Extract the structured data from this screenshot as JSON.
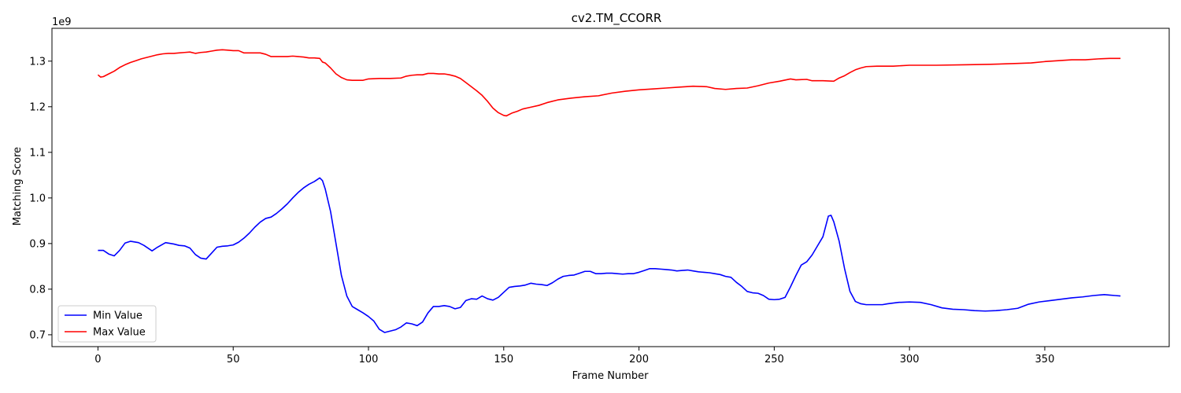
{
  "chart_data": {
    "type": "line",
    "title": "cv2.TM_CCORR",
    "xlabel": "Frame Number",
    "ylabel": "Matching Score",
    "y_offset_text": "1e9",
    "xlim": [
      -17,
      396
    ],
    "ylim": [
      0.674,
      1.372
    ],
    "x_ticks": [
      0,
      50,
      100,
      150,
      200,
      250,
      300,
      350
    ],
    "x_tick_labels": [
      "0",
      "50",
      "100",
      "150",
      "200",
      "250",
      "300",
      "350"
    ],
    "y_ticks": [
      0.7,
      0.8,
      0.9,
      1.0,
      1.1,
      1.2,
      1.3
    ],
    "y_tick_labels": [
      "0.7",
      "0.8",
      "0.9",
      "1.0",
      "1.1",
      "1.2",
      "1.3"
    ],
    "grid": false,
    "legend_position": "lower-left",
    "series": [
      {
        "name": "Min Value",
        "color": "#0000ff",
        "points": [
          [
            0,
            0.885
          ],
          [
            2,
            0.885
          ],
          [
            4,
            0.877
          ],
          [
            6,
            0.873
          ],
          [
            8,
            0.885
          ],
          [
            10,
            0.901
          ],
          [
            12,
            0.905
          ],
          [
            15,
            0.902
          ],
          [
            17,
            0.896
          ],
          [
            20,
            0.884
          ],
          [
            22,
            0.892
          ],
          [
            25,
            0.902
          ],
          [
            28,
            0.899
          ],
          [
            30,
            0.896
          ],
          [
            32,
            0.895
          ],
          [
            34,
            0.89
          ],
          [
            36,
            0.876
          ],
          [
            38,
            0.868
          ],
          [
            40,
            0.866
          ],
          [
            42,
            0.879
          ],
          [
            44,
            0.892
          ],
          [
            46,
            0.894
          ],
          [
            48,
            0.895
          ],
          [
            50,
            0.897
          ],
          [
            52,
            0.903
          ],
          [
            54,
            0.912
          ],
          [
            56,
            0.923
          ],
          [
            58,
            0.936
          ],
          [
            60,
            0.947
          ],
          [
            62,
            0.955
          ],
          [
            64,
            0.958
          ],
          [
            66,
            0.966
          ],
          [
            68,
            0.976
          ],
          [
            70,
            0.987
          ],
          [
            72,
            1.0
          ],
          [
            74,
            1.012
          ],
          [
            76,
            1.022
          ],
          [
            78,
            1.03
          ],
          [
            80,
            1.036
          ],
          [
            82,
            1.044
          ],
          [
            83,
            1.038
          ],
          [
            84,
            1.02
          ],
          [
            86,
            0.97
          ],
          [
            88,
            0.9
          ],
          [
            90,
            0.83
          ],
          [
            92,
            0.785
          ],
          [
            94,
            0.762
          ],
          [
            96,
            0.755
          ],
          [
            98,
            0.748
          ],
          [
            100,
            0.74
          ],
          [
            102,
            0.73
          ],
          [
            104,
            0.712
          ],
          [
            106,
            0.705
          ],
          [
            108,
            0.708
          ],
          [
            110,
            0.711
          ],
          [
            112,
            0.717
          ],
          [
            114,
            0.726
          ],
          [
            116,
            0.724
          ],
          [
            118,
            0.72
          ],
          [
            120,
            0.728
          ],
          [
            122,
            0.748
          ],
          [
            124,
            0.762
          ],
          [
            126,
            0.762
          ],
          [
            128,
            0.764
          ],
          [
            130,
            0.762
          ],
          [
            132,
            0.757
          ],
          [
            134,
            0.76
          ],
          [
            136,
            0.775
          ],
          [
            138,
            0.779
          ],
          [
            140,
            0.778
          ],
          [
            142,
            0.785
          ],
          [
            144,
            0.779
          ],
          [
            146,
            0.776
          ],
          [
            148,
            0.782
          ],
          [
            150,
            0.793
          ],
          [
            152,
            0.804
          ],
          [
            154,
            0.806
          ],
          [
            156,
            0.807
          ],
          [
            158,
            0.809
          ],
          [
            160,
            0.813
          ],
          [
            162,
            0.811
          ],
          [
            164,
            0.81
          ],
          [
            166,
            0.808
          ],
          [
            168,
            0.814
          ],
          [
            170,
            0.822
          ],
          [
            172,
            0.828
          ],
          [
            174,
            0.83
          ],
          [
            176,
            0.831
          ],
          [
            178,
            0.835
          ],
          [
            180,
            0.839
          ],
          [
            182,
            0.839
          ],
          [
            184,
            0.834
          ],
          [
            186,
            0.834
          ],
          [
            188,
            0.835
          ],
          [
            190,
            0.835
          ],
          [
            192,
            0.834
          ],
          [
            194,
            0.833
          ],
          [
            196,
            0.834
          ],
          [
            198,
            0.834
          ],
          [
            200,
            0.837
          ],
          [
            202,
            0.841
          ],
          [
            204,
            0.845
          ],
          [
            206,
            0.845
          ],
          [
            208,
            0.844
          ],
          [
            210,
            0.843
          ],
          [
            212,
            0.842
          ],
          [
            214,
            0.84
          ],
          [
            216,
            0.841
          ],
          [
            218,
            0.842
          ],
          [
            220,
            0.84
          ],
          [
            222,
            0.838
          ],
          [
            224,
            0.837
          ],
          [
            226,
            0.836
          ],
          [
            228,
            0.834
          ],
          [
            230,
            0.832
          ],
          [
            232,
            0.828
          ],
          [
            234,
            0.826
          ],
          [
            236,
            0.815
          ],
          [
            238,
            0.806
          ],
          [
            240,
            0.795
          ],
          [
            242,
            0.792
          ],
          [
            244,
            0.791
          ],
          [
            246,
            0.786
          ],
          [
            248,
            0.778
          ],
          [
            250,
            0.777
          ],
          [
            252,
            0.778
          ],
          [
            254,
            0.782
          ],
          [
            256,
            0.805
          ],
          [
            258,
            0.83
          ],
          [
            260,
            0.853
          ],
          [
            262,
            0.86
          ],
          [
            264,
            0.875
          ],
          [
            266,
            0.895
          ],
          [
            268,
            0.915
          ],
          [
            270,
            0.96
          ],
          [
            271,
            0.962
          ],
          [
            272,
            0.948
          ],
          [
            274,
            0.905
          ],
          [
            276,
            0.845
          ],
          [
            278,
            0.795
          ],
          [
            280,
            0.773
          ],
          [
            282,
            0.768
          ],
          [
            284,
            0.766
          ],
          [
            290,
            0.766
          ],
          [
            292,
            0.768
          ],
          [
            296,
            0.771
          ],
          [
            300,
            0.772
          ],
          [
            304,
            0.771
          ],
          [
            308,
            0.766
          ],
          [
            312,
            0.759
          ],
          [
            316,
            0.756
          ],
          [
            320,
            0.755
          ],
          [
            324,
            0.753
          ],
          [
            328,
            0.752
          ],
          [
            332,
            0.753
          ],
          [
            336,
            0.755
          ],
          [
            340,
            0.758
          ],
          [
            344,
            0.767
          ],
          [
            348,
            0.772
          ],
          [
            352,
            0.775
          ],
          [
            356,
            0.778
          ],
          [
            360,
            0.781
          ],
          [
            364,
            0.783
          ],
          [
            368,
            0.786
          ],
          [
            372,
            0.788
          ],
          [
            374,
            0.787
          ],
          [
            376,
            0.786
          ],
          [
            378,
            0.785
          ]
        ]
      },
      {
        "name": "Max Value",
        "color": "#ff0000",
        "points": [
          [
            0,
            1.27
          ],
          [
            1,
            1.265
          ],
          [
            2,
            1.266
          ],
          [
            4,
            1.272
          ],
          [
            6,
            1.278
          ],
          [
            8,
            1.286
          ],
          [
            10,
            1.292
          ],
          [
            12,
            1.297
          ],
          [
            14,
            1.301
          ],
          [
            16,
            1.305
          ],
          [
            18,
            1.308
          ],
          [
            20,
            1.311
          ],
          [
            22,
            1.314
          ],
          [
            24,
            1.316
          ],
          [
            26,
            1.317
          ],
          [
            28,
            1.317
          ],
          [
            30,
            1.318
          ],
          [
            32,
            1.319
          ],
          [
            34,
            1.32
          ],
          [
            36,
            1.317
          ],
          [
            38,
            1.319
          ],
          [
            40,
            1.32
          ],
          [
            42,
            1.322
          ],
          [
            44,
            1.324
          ],
          [
            46,
            1.325
          ],
          [
            48,
            1.324
          ],
          [
            50,
            1.323
          ],
          [
            52,
            1.323
          ],
          [
            54,
            1.318
          ],
          [
            56,
            1.318
          ],
          [
            58,
            1.318
          ],
          [
            60,
            1.318
          ],
          [
            62,
            1.315
          ],
          [
            64,
            1.31
          ],
          [
            66,
            1.31
          ],
          [
            68,
            1.31
          ],
          [
            70,
            1.31
          ],
          [
            72,
            1.311
          ],
          [
            74,
            1.31
          ],
          [
            76,
            1.309
          ],
          [
            78,
            1.307
          ],
          [
            80,
            1.307
          ],
          [
            82,
            1.306
          ],
          [
            83,
            1.298
          ],
          [
            84,
            1.296
          ],
          [
            86,
            1.285
          ],
          [
            88,
            1.272
          ],
          [
            90,
            1.264
          ],
          [
            92,
            1.259
          ],
          [
            94,
            1.258
          ],
          [
            96,
            1.258
          ],
          [
            98,
            1.258
          ],
          [
            100,
            1.261
          ],
          [
            104,
            1.262
          ],
          [
            108,
            1.262
          ],
          [
            112,
            1.263
          ],
          [
            114,
            1.267
          ],
          [
            116,
            1.269
          ],
          [
            118,
            1.27
          ],
          [
            120,
            1.27
          ],
          [
            122,
            1.273
          ],
          [
            124,
            1.273
          ],
          [
            126,
            1.272
          ],
          [
            128,
            1.272
          ],
          [
            130,
            1.27
          ],
          [
            132,
            1.267
          ],
          [
            134,
            1.262
          ],
          [
            136,
            1.253
          ],
          [
            138,
            1.244
          ],
          [
            140,
            1.235
          ],
          [
            142,
            1.225
          ],
          [
            144,
            1.212
          ],
          [
            146,
            1.197
          ],
          [
            148,
            1.187
          ],
          [
            150,
            1.181
          ],
          [
            151,
            1.18
          ],
          [
            153,
            1.186
          ],
          [
            155,
            1.19
          ],
          [
            157,
            1.195
          ],
          [
            160,
            1.199
          ],
          [
            163,
            1.203
          ],
          [
            166,
            1.209
          ],
          [
            170,
            1.215
          ],
          [
            175,
            1.219
          ],
          [
            180,
            1.222
          ],
          [
            185,
            1.224
          ],
          [
            190,
            1.23
          ],
          [
            195,
            1.234
          ],
          [
            200,
            1.237
          ],
          [
            205,
            1.239
          ],
          [
            210,
            1.241
          ],
          [
            215,
            1.243
          ],
          [
            220,
            1.245
          ],
          [
            225,
            1.244
          ],
          [
            228,
            1.24
          ],
          [
            232,
            1.238
          ],
          [
            236,
            1.24
          ],
          [
            240,
            1.241
          ],
          [
            244,
            1.246
          ],
          [
            248,
            1.252
          ],
          [
            252,
            1.256
          ],
          [
            256,
            1.261
          ],
          [
            258,
            1.259
          ],
          [
            262,
            1.26
          ],
          [
            264,
            1.257
          ],
          [
            268,
            1.257
          ],
          [
            272,
            1.256
          ],
          [
            274,
            1.263
          ],
          [
            276,
            1.268
          ],
          [
            278,
            1.275
          ],
          [
            280,
            1.281
          ],
          [
            282,
            1.285
          ],
          [
            284,
            1.288
          ],
          [
            288,
            1.289
          ],
          [
            294,
            1.289
          ],
          [
            300,
            1.291
          ],
          [
            310,
            1.291
          ],
          [
            320,
            1.292
          ],
          [
            330,
            1.293
          ],
          [
            340,
            1.295
          ],
          [
            345,
            1.296
          ],
          [
            350,
            1.299
          ],
          [
            355,
            1.301
          ],
          [
            360,
            1.303
          ],
          [
            365,
            1.303
          ],
          [
            370,
            1.305
          ],
          [
            374,
            1.306
          ],
          [
            378,
            1.306
          ]
        ]
      }
    ]
  }
}
